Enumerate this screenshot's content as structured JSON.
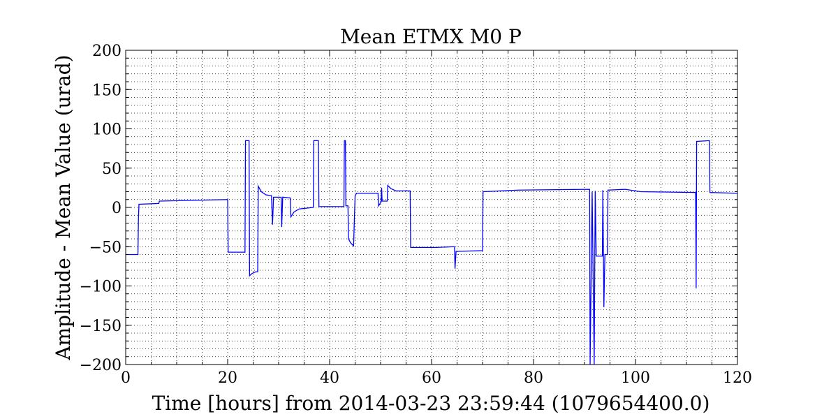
{
  "chart_data": {
    "type": "line",
    "title": "Mean ETMX M0 P",
    "xlabel": "Time [hours] from 2014-03-23 23:59:44 (1079654400.0)",
    "ylabel": "Amplitude - Mean Value (urad)",
    "xlim": [
      0,
      120
    ],
    "ylim": [
      -200,
      200
    ],
    "x_ticks": [
      0,
      20,
      40,
      60,
      80,
      100,
      120
    ],
    "y_ticks": [
      -200,
      -150,
      -100,
      -50,
      0,
      50,
      100,
      150,
      200
    ],
    "x_tick_labels": [
      "0",
      "20",
      "40",
      "60",
      "80",
      "100",
      "120"
    ],
    "y_tick_labels": [
      "−200",
      "−150",
      "−100",
      "−50",
      "0",
      "50",
      "100",
      "150",
      "200"
    ],
    "grid": true,
    "grid_style": "dotted, major and minor",
    "series": [
      {
        "color": "#0000ff",
        "points": [
          [
            0,
            -60
          ],
          [
            2.4,
            -60
          ],
          [
            2.5,
            -15
          ],
          [
            2.6,
            4
          ],
          [
            6.5,
            5
          ],
          [
            6.6,
            8
          ],
          [
            20,
            10
          ],
          [
            20.1,
            -57
          ],
          [
            23.4,
            -57
          ],
          [
            23.5,
            85
          ],
          [
            24.2,
            85
          ],
          [
            24.3,
            -87
          ],
          [
            24.8,
            -84
          ],
          [
            25.5,
            -82
          ],
          [
            25.9,
            -82
          ],
          [
            26.0,
            27
          ],
          [
            26.6,
            20
          ],
          [
            27.5,
            16
          ],
          [
            28.5,
            15
          ],
          [
            28.6,
            15
          ],
          [
            28.8,
            -22
          ],
          [
            29.0,
            13
          ],
          [
            30.5,
            13
          ],
          [
            30.6,
            -25
          ],
          [
            30.8,
            13
          ],
          [
            32.3,
            12
          ],
          [
            32.4,
            -12
          ],
          [
            33.0,
            -6
          ],
          [
            34,
            -2
          ],
          [
            36.8,
            0
          ],
          [
            36.9,
            85
          ],
          [
            37.8,
            85
          ],
          [
            37.9,
            1
          ],
          [
            42.8,
            1
          ],
          [
            42.9,
            85
          ],
          [
            43.1,
            85
          ],
          [
            43.2,
            2
          ],
          [
            43.6,
            2
          ],
          [
            43.7,
            -40
          ],
          [
            44.1,
            -45
          ],
          [
            44.7,
            -49
          ],
          [
            45.0,
            15
          ],
          [
            45.3,
            18
          ],
          [
            49.5,
            18
          ],
          [
            49.6,
            2
          ],
          [
            50.1,
            7
          ],
          [
            50.2,
            25
          ],
          [
            50.3,
            8
          ],
          [
            51.3,
            8
          ],
          [
            51.4,
            28
          ],
          [
            52,
            24
          ],
          [
            53,
            21
          ],
          [
            55.8,
            21
          ],
          [
            55.9,
            -51
          ],
          [
            61,
            -51
          ],
          [
            64.5,
            -50
          ],
          [
            64.6,
            -78
          ],
          [
            64.8,
            -56
          ],
          [
            70,
            -55
          ],
          [
            70.1,
            20
          ],
          [
            77,
            22
          ],
          [
            91,
            23
          ],
          [
            91.1,
            -200
          ],
          [
            91.5,
            20
          ],
          [
            91.9,
            -200
          ],
          [
            92.1,
            21
          ],
          [
            92.3,
            -62
          ],
          [
            93.5,
            -62
          ],
          [
            93.6,
            22
          ],
          [
            93.8,
            -127
          ],
          [
            94.0,
            -60
          ],
          [
            94.5,
            -60
          ],
          [
            94.6,
            22
          ],
          [
            98,
            23
          ],
          [
            101,
            20
          ],
          [
            111.8,
            19
          ],
          [
            111.9,
            -103
          ],
          [
            112.0,
            84
          ],
          [
            114.5,
            85
          ],
          [
            114.6,
            19
          ],
          [
            120,
            18
          ]
        ]
      }
    ]
  }
}
